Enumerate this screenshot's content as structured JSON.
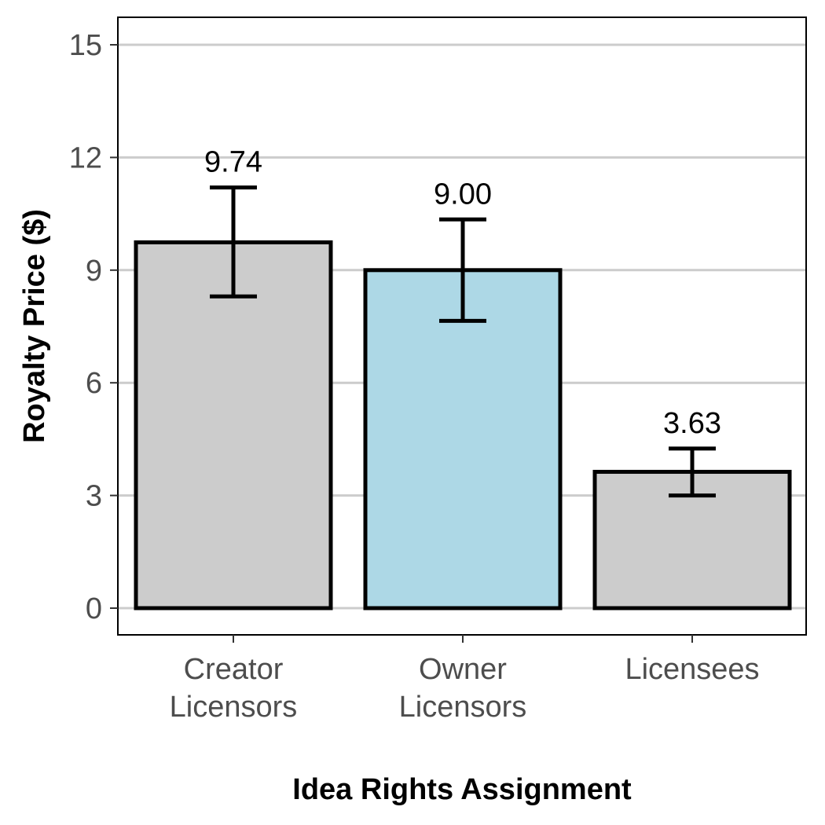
{
  "chart_data": {
    "type": "bar",
    "title": "",
    "xlabel": "Idea Rights Assignment",
    "ylabel": "Royalty Price ($)",
    "ylim": [
      0,
      15
    ],
    "yticks": [
      "0",
      "3",
      "6",
      "9",
      "12",
      "15"
    ],
    "grid": "horizontal",
    "categories": [
      [
        "Creator",
        "Licensors"
      ],
      [
        "Owner",
        "Licensors"
      ],
      [
        "Licensees"
      ]
    ],
    "values": [
      9.74,
      9.0,
      3.63
    ],
    "data_labels": [
      "9.74",
      "9.00",
      "3.63"
    ],
    "error_bars": [
      {
        "low": 8.3,
        "high": 11.2
      },
      {
        "low": 7.65,
        "high": 10.35
      },
      {
        "low": 3.0,
        "high": 4.25
      }
    ],
    "colors": [
      "#cccccc",
      "#add8e6",
      "#cccccc"
    ],
    "bar_outline": "#000000",
    "gridline_color": "#cccccc"
  }
}
